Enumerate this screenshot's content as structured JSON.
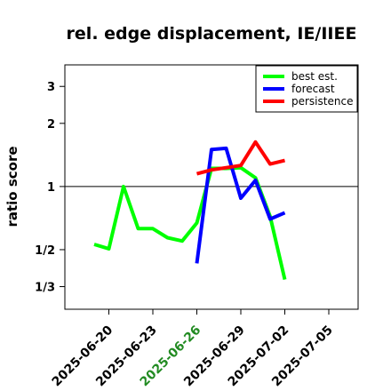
{
  "chart_data": {
    "type": "line",
    "title": "rel. edge displacement, IE/IIEE",
    "ylabel": "ratio score",
    "xlabel": "",
    "y_scale": "log",
    "yticks": [
      {
        "value": 0.3333,
        "label": "1/3"
      },
      {
        "value": 0.5,
        "label": "1/2"
      },
      {
        "value": 1,
        "label": "1"
      },
      {
        "value": 2,
        "label": "2"
      },
      {
        "value": 3,
        "label": "3"
      }
    ],
    "xticks": [
      {
        "date": "2025-06-20",
        "label": "2025-06-20",
        "color": "#000000"
      },
      {
        "date": "2025-06-23",
        "label": "2025-06-23",
        "color": "#000000"
      },
      {
        "date": "2025-06-26",
        "label": "2025-06-26",
        "color": "#228B22"
      },
      {
        "date": "2025-06-29",
        "label": "2025-06-29",
        "color": "#000000"
      },
      {
        "date": "2025-07-02",
        "label": "2025-07-02",
        "color": "#000000"
      },
      {
        "date": "2025-07-05",
        "label": "2025-07-05",
        "color": "#000000"
      }
    ],
    "xlim": [
      "2025-06-17",
      "2025-07-07"
    ],
    "ylim": [
      0.26,
      3.8
    ],
    "reference_line": 1,
    "legend_position": "top-right",
    "series": [
      {
        "name": "best est.",
        "color": "#00ff00",
        "points": [
          [
            "2025-06-19",
            0.53
          ],
          [
            "2025-06-20",
            0.505
          ],
          [
            "2025-06-21",
            1.0
          ],
          [
            "2025-06-22",
            0.63
          ],
          [
            "2025-06-23",
            0.63
          ],
          [
            "2025-06-24",
            0.57
          ],
          [
            "2025-06-25",
            0.55
          ],
          [
            "2025-06-26",
            0.67
          ],
          [
            "2025-06-27",
            1.22
          ],
          [
            "2025-06-28",
            1.22
          ],
          [
            "2025-06-29",
            1.23
          ],
          [
            "2025-06-30",
            1.1
          ],
          [
            "2025-07-01",
            0.72
          ],
          [
            "2025-07-02",
            0.36
          ]
        ]
      },
      {
        "name": "forecast",
        "color": "#0000ff",
        "points": [
          [
            "2025-06-26",
            0.43
          ],
          [
            "2025-06-27",
            1.5
          ],
          [
            "2025-06-28",
            1.52
          ],
          [
            "2025-06-29",
            0.88
          ],
          [
            "2025-06-30",
            1.07
          ],
          [
            "2025-07-01",
            0.7
          ],
          [
            "2025-07-02",
            0.75
          ]
        ]
      },
      {
        "name": "persistence",
        "color": "#ff0000",
        "points": [
          [
            "2025-06-26",
            1.15
          ],
          [
            "2025-06-27",
            1.2
          ],
          [
            "2025-06-28",
            1.23
          ],
          [
            "2025-06-29",
            1.26
          ],
          [
            "2025-06-30",
            1.63
          ],
          [
            "2025-07-01",
            1.28
          ],
          [
            "2025-07-02",
            1.33
          ]
        ]
      }
    ]
  }
}
